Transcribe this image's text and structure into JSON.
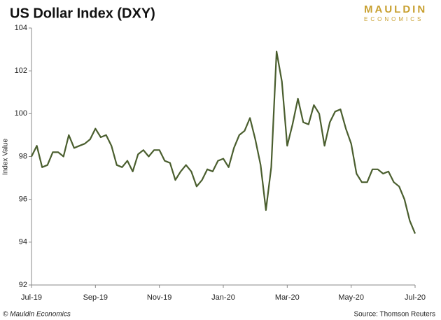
{
  "chart_data": {
    "type": "line",
    "title": "US Dollar Index (DXY)",
    "logo": [
      "MAULDIN",
      "ECONOMICS"
    ],
    "y_label": "Index Value",
    "copyright": "© Mauldin Economics",
    "source": "Source: Thomson Reuters",
    "categories": [
      "Jul-19",
      null,
      null,
      null,
      null,
      null,
      null,
      null,
      null,
      null,
      null,
      null,
      "Sep-19",
      null,
      null,
      null,
      null,
      null,
      null,
      null,
      null,
      null,
      null,
      null,
      "Nov-19",
      null,
      null,
      null,
      null,
      null,
      null,
      null,
      null,
      null,
      null,
      null,
      "Jan-20",
      null,
      null,
      null,
      null,
      null,
      null,
      null,
      null,
      null,
      null,
      null,
      "Mar-20",
      null,
      null,
      null,
      null,
      null,
      null,
      null,
      null,
      null,
      null,
      null,
      "May-20",
      null,
      null,
      null,
      null,
      null,
      null,
      null,
      null,
      null,
      null,
      null,
      "Jul-20"
    ],
    "series": [
      {
        "name": "DXY",
        "color": "#4a5e2e",
        "values": [
          98.0,
          98.5,
          97.5,
          97.6,
          98.2,
          98.2,
          98.0,
          99.0,
          98.4,
          98.5,
          98.6,
          98.8,
          99.3,
          98.9,
          99.0,
          98.5,
          97.6,
          97.5,
          97.8,
          97.3,
          98.1,
          98.3,
          98.0,
          98.3,
          98.3,
          97.8,
          97.7,
          96.9,
          97.3,
          97.6,
          97.3,
          96.6,
          96.9,
          97.4,
          97.3,
          97.8,
          97.9,
          97.5,
          98.4,
          99.0,
          99.2,
          99.8,
          98.8,
          97.6,
          95.5,
          97.5,
          102.9,
          101.5,
          98.5,
          99.5,
          100.7,
          99.6,
          99.5,
          100.4,
          100.0,
          98.5,
          99.6,
          100.1,
          100.2,
          99.3,
          98.6,
          97.2,
          96.8,
          96.8,
          97.4,
          97.4,
          97.2,
          97.3,
          96.8,
          96.6,
          96.0,
          95.0,
          94.4
        ]
      }
    ],
    "ylim": [
      92,
      104
    ],
    "yticks": [
      92,
      94,
      96,
      98,
      100,
      102,
      104
    ],
    "grid": false
  }
}
